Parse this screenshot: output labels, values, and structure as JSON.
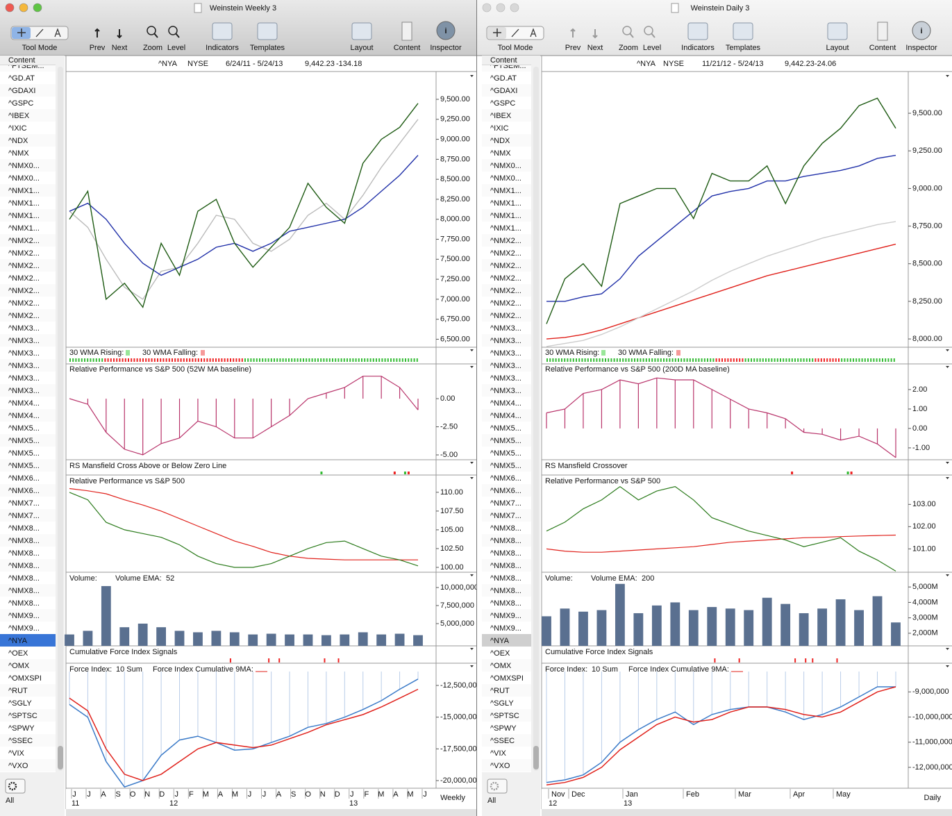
{
  "toolbar": {
    "labels": [
      "Tool Mode",
      "Prev",
      "Next",
      "Zoom",
      "Level",
      "Indicators",
      "Templates",
      "Layout",
      "Content",
      "Inspector"
    ]
  },
  "sidebar": {
    "header": "Content",
    "items": [
      "^FTSEM...",
      "^GD.AT",
      "^GDAXI",
      "^GSPC",
      "^IBEX",
      "^IXIC",
      "^NDX",
      "^NMX",
      "^NMX0...",
      "^NMX0...",
      "^NMX1...",
      "^NMX1...",
      "^NMX1...",
      "^NMX1...",
      "^NMX2...",
      "^NMX2...",
      "^NMX2...",
      "^NMX2...",
      "^NMX2...",
      "^NMX2...",
      "^NMX2...",
      "^NMX3...",
      "^NMX3...",
      "^NMX3...",
      "^NMX3...",
      "^NMX3...",
      "^NMX3...",
      "^NMX4...",
      "^NMX4...",
      "^NMX5...",
      "^NMX5...",
      "^NMX5...",
      "^NMX5...",
      "^NMX6...",
      "^NMX6...",
      "^NMX7...",
      "^NMX7...",
      "^NMX8...",
      "^NMX8...",
      "^NMX8...",
      "^NMX8...",
      "^NMX8...",
      "^NMX8...",
      "^NMX8...",
      "^NMX9...",
      "^NMX9...",
      "^NYA",
      "^OEX",
      "^OMX",
      "^OMXSPI",
      "^RUT",
      "^SGLY",
      "^SPTSC",
      "^SPWY",
      "^SSEC",
      "^VIX",
      "^VXO"
    ],
    "selected": 46,
    "footer": "All"
  },
  "windows": [
    {
      "title": "Weinstein Weekly 3",
      "active": true,
      "header": {
        "symbol": "^NYA",
        "exchange": "NYSE",
        "range": "6/24/11 - 5/24/13",
        "price": "9,442.23",
        "change": "-134.18"
      },
      "period": "Weekly",
      "months": [
        "J",
        "J",
        "A",
        "S",
        "O",
        "N",
        "D",
        "J",
        "F",
        "M",
        "A",
        "M",
        "J",
        "J",
        "A",
        "S",
        "O",
        "N",
        "D",
        "J",
        "F",
        "M",
        "A",
        "M",
        "J"
      ],
      "years": [
        "11",
        "12",
        "13"
      ],
      "price": {
        "ylim": [
          6400,
          9830
        ],
        "yticks": [
          {
            "value": 6500,
            "label": "6,500.00"
          },
          {
            "value": 6750,
            "label": "6,750.00"
          },
          {
            "value": 7000,
            "label": "7,000.00"
          },
          {
            "value": 7250,
            "label": "7,250.00"
          },
          {
            "value": 7500,
            "label": "7,500.00"
          },
          {
            "value": 7750,
            "label": "7,750.00"
          },
          {
            "value": 8000,
            "label": "8,000.00"
          },
          {
            "value": 8250,
            "label": "8,250.00"
          },
          {
            "value": 8500,
            "label": "8,500.00"
          },
          {
            "value": 8750,
            "label": "8,750.00"
          },
          {
            "value": 9000,
            "label": "9,000.00"
          },
          {
            "value": 9250,
            "label": "9,250.00"
          },
          {
            "value": 9500,
            "label": "9,500.00"
          }
        ],
        "series": [
          {
            "color": "#bbbbbb",
            "values": [
              8100,
              7900,
              7500,
              7150,
              7000,
              7350,
              7400,
              7700,
              8050,
              8000,
              7700,
              7600,
              7750,
              8050,
              8200,
              8000,
              8300,
              8650,
              8950,
              9250
            ]
          },
          {
            "color": "#1f2fa8",
            "values": [
              8100,
              8200,
              8000,
              7700,
              7450,
              7300,
              7400,
              7500,
              7650,
              7700,
              7600,
              7700,
              7850,
              7900,
              7950,
              8000,
              8150,
              8350,
              8550,
              8800
            ]
          },
          {
            "color": "#1d5a12",
            "values": [
              8000,
              8350,
              7000,
              7200,
              6900,
              7700,
              7300,
              8100,
              8250,
              7700,
              7400,
              7650,
              7900,
              8450,
              8150,
              7950,
              8700,
              9000,
              9150,
              9450
            ]
          }
        ]
      },
      "wma": {
        "rising": "30 WMA Rising:",
        "falling": "30 WMA Falling:"
      },
      "rp_baseline": {
        "title": "Relative Performance vs S&P 500 (52W MA baseline)",
        "color": "#b8336a",
        "ylim": [
          -5.43,
          3.09
        ],
        "yticks": [
          {
            "value": 0,
            "label": "0.00"
          },
          {
            "value": -2.5,
            "label": "-2.50"
          },
          {
            "value": -5,
            "label": "-5.00"
          }
        ],
        "values": [
          0,
          -0.5,
          -3,
          -4.5,
          -5,
          -4,
          -3.5,
          -2,
          -2.5,
          -3.5,
          -3.5,
          -2.5,
          -1.5,
          0,
          0.5,
          1,
          2,
          2,
          1,
          -1
        ]
      },
      "rs_cross": {
        "title": "RS Mansfield Cross Above or Below Zero Line"
      },
      "rp": {
        "title": "Relative Performance vs S&P 500",
        "ylim": [
          99.35,
          112.3
        ],
        "yticks": [
          {
            "value": 100,
            "label": "100.00"
          },
          {
            "value": 102.5,
            "label": "102.50"
          },
          {
            "value": 105,
            "label": "105.00"
          },
          {
            "value": 107.5,
            "label": "107.50"
          },
          {
            "value": 110,
            "label": "110.00"
          }
        ],
        "series": [
          {
            "color": "#e0201a",
            "values": [
              110.5,
              110.2,
              109.8,
              109,
              108.3,
              107.5,
              106.5,
              105.5,
              104.5,
              103.5,
              102.8,
              102,
              101.5,
              101.2,
              101.1,
              101,
              101,
              101,
              101,
              101
            ]
          },
          {
            "color": "#2a7a1a",
            "values": [
              110,
              109,
              106,
              105,
              104.5,
              104,
              103,
              101.5,
              100.5,
              100,
              100,
              100.5,
              101.5,
              102.5,
              103.3,
              103.5,
              102.5,
              101.5,
              101,
              100.2
            ]
          }
        ]
      },
      "volume": {
        "title": "Volume:",
        "ema_label": "Volume EMA:",
        "ema_period": 52,
        "color": "#5a7090",
        "ylim": [
          1920000,
          12115000
        ],
        "yticks": [
          {
            "value": 5000000,
            "label": "5,000,000"
          },
          {
            "value": 7500000,
            "label": "7,500,000"
          },
          {
            "value": 10000000,
            "label": "10,000,000"
          }
        ],
        "values": [
          3500000,
          4000000,
          10200000,
          4500000,
          5000000,
          4500000,
          4000000,
          3800000,
          4000000,
          3800000,
          3500000,
          3600000,
          3500000,
          3500000,
          3400000,
          3500000,
          3800000,
          3500000,
          3600000,
          3400000
        ]
      },
      "cfi": {
        "title": "Cumulative Force Index Signals"
      },
      "force": {
        "title": "Force Index:",
        "sum": "10 Sum",
        "cum_label": "Force Index Cumulative 9MA:",
        "ylim": [
          -20600000,
          -10750000
        ],
        "yticks": [
          {
            "value": -12500000,
            "label": "-12,500,000"
          },
          {
            "value": -15000000,
            "label": "-15,000,000"
          },
          {
            "value": -17500000,
            "label": "-17,500,000"
          },
          {
            "value": -20000000,
            "label": "-20,000,000"
          }
        ],
        "series": [
          {
            "color": "#3a7ac8",
            "values": [
              -14000000,
              -15000000,
              -18500000,
              -20500000,
              -20000000,
              -18000000,
              -16800000,
              -16500000,
              -17000000,
              -17600000,
              -17500000,
              -17000000,
              -16500000,
              -15800000,
              -15500000,
              -15000000,
              -14400000,
              -13700000,
              -12800000,
              -12000000
            ]
          },
          {
            "color": "#e0201a",
            "values": [
              -13500000,
              -14500000,
              -17500000,
              -19500000,
              -20000000,
              -19500000,
              -18500000,
              -17500000,
              -17000000,
              -17200000,
              -17400000,
              -17200000,
              -16700000,
              -16200000,
              -15600000,
              -15200000,
              -14800000,
              -14200000,
              -13500000,
              -12800000
            ]
          }
        ]
      }
    },
    {
      "title": "Weinstein Daily 3",
      "active": false,
      "header": {
        "symbol": "^NYA",
        "exchange": "NYSE",
        "range": "11/21/12 - 5/24/13",
        "price": "9,442.23",
        "change": "-24.06"
      },
      "period": "Daily",
      "months": [
        "Nov",
        "Dec",
        "Jan",
        "Feb",
        "Mar",
        "Apr",
        "May"
      ],
      "years": [
        "12",
        "13"
      ],
      "price": {
        "ylim": [
          7945,
          9768
        ],
        "yticks": [
          {
            "value": 8000,
            "label": "8,000.00"
          },
          {
            "value": 8250,
            "label": "8,250.00"
          },
          {
            "value": 8500,
            "label": "8,500.00"
          },
          {
            "value": 8750,
            "label": "8,750.00"
          },
          {
            "value": 9000,
            "label": "9,000.00"
          },
          {
            "value": 9250,
            "label": "9,250.00"
          },
          {
            "value": 9500,
            "label": "9,500.00"
          }
        ],
        "series": [
          {
            "color": "#e0201a",
            "values": [
              8000,
              8010,
              8030,
              8060,
              8100,
              8140,
              8180,
              8220,
              8260,
              8300,
              8340,
              8380,
              8420,
              8450,
              8480,
              8510,
              8540,
              8570,
              8600,
              8630
            ]
          },
          {
            "color": "#cccccc",
            "values": [
              7950,
              7970,
              7990,
              8030,
              8080,
              8140,
              8200,
              8260,
              8320,
              8390,
              8450,
              8500,
              8550,
              8590,
              8630,
              8670,
              8700,
              8730,
              8760,
              8780
            ]
          },
          {
            "color": "#1f2fa8",
            "values": [
              8250,
              8250,
              8280,
              8300,
              8400,
              8550,
              8650,
              8750,
              8850,
              8950,
              8980,
              9000,
              9050,
              9050,
              9080,
              9100,
              9120,
              9150,
              9200,
              9220
            ]
          },
          {
            "color": "#1d5a12",
            "values": [
              8100,
              8400,
              8500,
              8350,
              8900,
              8950,
              9000,
              9000,
              8800,
              9100,
              9050,
              9050,
              9150,
              8900,
              9150,
              9300,
              9400,
              9550,
              9600,
              9400
            ]
          }
        ]
      },
      "wma": {
        "rising": "30 WMA Rising:",
        "falling": "30 WMA Falling:"
      },
      "rp_baseline": {
        "title": "Relative Performance vs S&P 500 (200D MA baseline)",
        "color": "#b8336a",
        "ylim": [
          -1.61,
          3.32
        ],
        "yticks": [
          {
            "value": 2,
            "label": "2.00"
          },
          {
            "value": 1,
            "label": "1.00"
          },
          {
            "value": 0,
            "label": "0.00"
          },
          {
            "value": -1,
            "label": "-1.00"
          }
        ],
        "values": [
          0.8,
          1,
          1.8,
          2,
          2.5,
          2.3,
          2.6,
          2.5,
          2.5,
          2,
          1.5,
          1,
          0.8,
          0.5,
          -0.2,
          -0.3,
          -0.6,
          -0.4,
          -0.8,
          -1.5
        ]
      },
      "rs_cross": {
        "title": "RS Mansfield Crossover"
      },
      "rp": {
        "title": "Relative Performance vs S&P 500",
        "ylim": [
          99.95,
          104.32
        ],
        "yticks": [
          {
            "value": 101,
            "label": "101.00"
          },
          {
            "value": 102,
            "label": "102.00"
          },
          {
            "value": 103,
            "label": "103.00"
          }
        ],
        "series": [
          {
            "color": "#e0201a",
            "values": [
              101,
              100.9,
              100.85,
              100.85,
              100.9,
              100.95,
              101,
              101.05,
              101.1,
              101.2,
              101.3,
              101.35,
              101.4,
              101.45,
              101.5,
              101.52,
              101.55,
              101.58,
              101.6,
              101.62
            ]
          },
          {
            "color": "#2a7a1a",
            "values": [
              101.8,
              102.2,
              102.8,
              103.2,
              103.8,
              103.2,
              103.6,
              103.8,
              103.2,
              102.4,
              102.1,
              101.8,
              101.6,
              101.4,
              101.1,
              101.3,
              101.5,
              100.9,
              100.5,
              100
            ]
          }
        ]
      },
      "volume": {
        "title": "Volume:",
        "ema_label": "Volume EMA:",
        "ema_period": 200,
        "color": "#5a7090",
        "ylim": [
          1182,
          5955
        ],
        "yticks": [
          {
            "value": 2000,
            "label": "2,000M"
          },
          {
            "value": 3000,
            "label": "3,000M"
          },
          {
            "value": 4000,
            "label": "4,000M"
          },
          {
            "value": 5000,
            "label": "5,000M"
          }
        ],
        "values": [
          3100,
          3600,
          3400,
          3500,
          5200,
          3300,
          3800,
          4000,
          3500,
          3700,
          3600,
          3500,
          4300,
          3900,
          3300,
          3600,
          4200,
          3500,
          4400,
          2700
        ]
      },
      "cfi": {
        "title": "Cumulative Force Index Signals"
      },
      "force": {
        "title": "Force Index:",
        "sum": "10 Sum",
        "cum_label": "Force Index Cumulative 9MA:",
        "ylim": [
          -12830000,
          -7860000
        ],
        "yticks": [
          {
            "value": -9000000,
            "label": "-9,000,000"
          },
          {
            "value": -10000000,
            "label": "-10,000,000"
          },
          {
            "value": -11000000,
            "label": "-11,000,000"
          },
          {
            "value": -12000000,
            "label": "-12,000,000"
          }
        ],
        "series": [
          {
            "color": "#3a7ac8",
            "values": [
              -12600000,
              -12500000,
              -12300000,
              -11800000,
              -11000000,
              -10500000,
              -10100000,
              -9800000,
              -10300000,
              -9900000,
              -9700000,
              -9600000,
              -9600000,
              -9800000,
              -10100000,
              -9900000,
              -9600000,
              -9200000,
              -8800000,
              -8800000
            ]
          },
          {
            "color": "#e0201a",
            "values": [
              -12700000,
              -12600000,
              -12400000,
              -12000000,
              -11300000,
              -10800000,
              -10300000,
              -10000000,
              -10200000,
              -10100000,
              -9800000,
              -9600000,
              -9600000,
              -9700000,
              -9900000,
              -10000000,
              -9800000,
              -9400000,
              -9000000,
              -8800000
            ]
          }
        ]
      }
    }
  ]
}
